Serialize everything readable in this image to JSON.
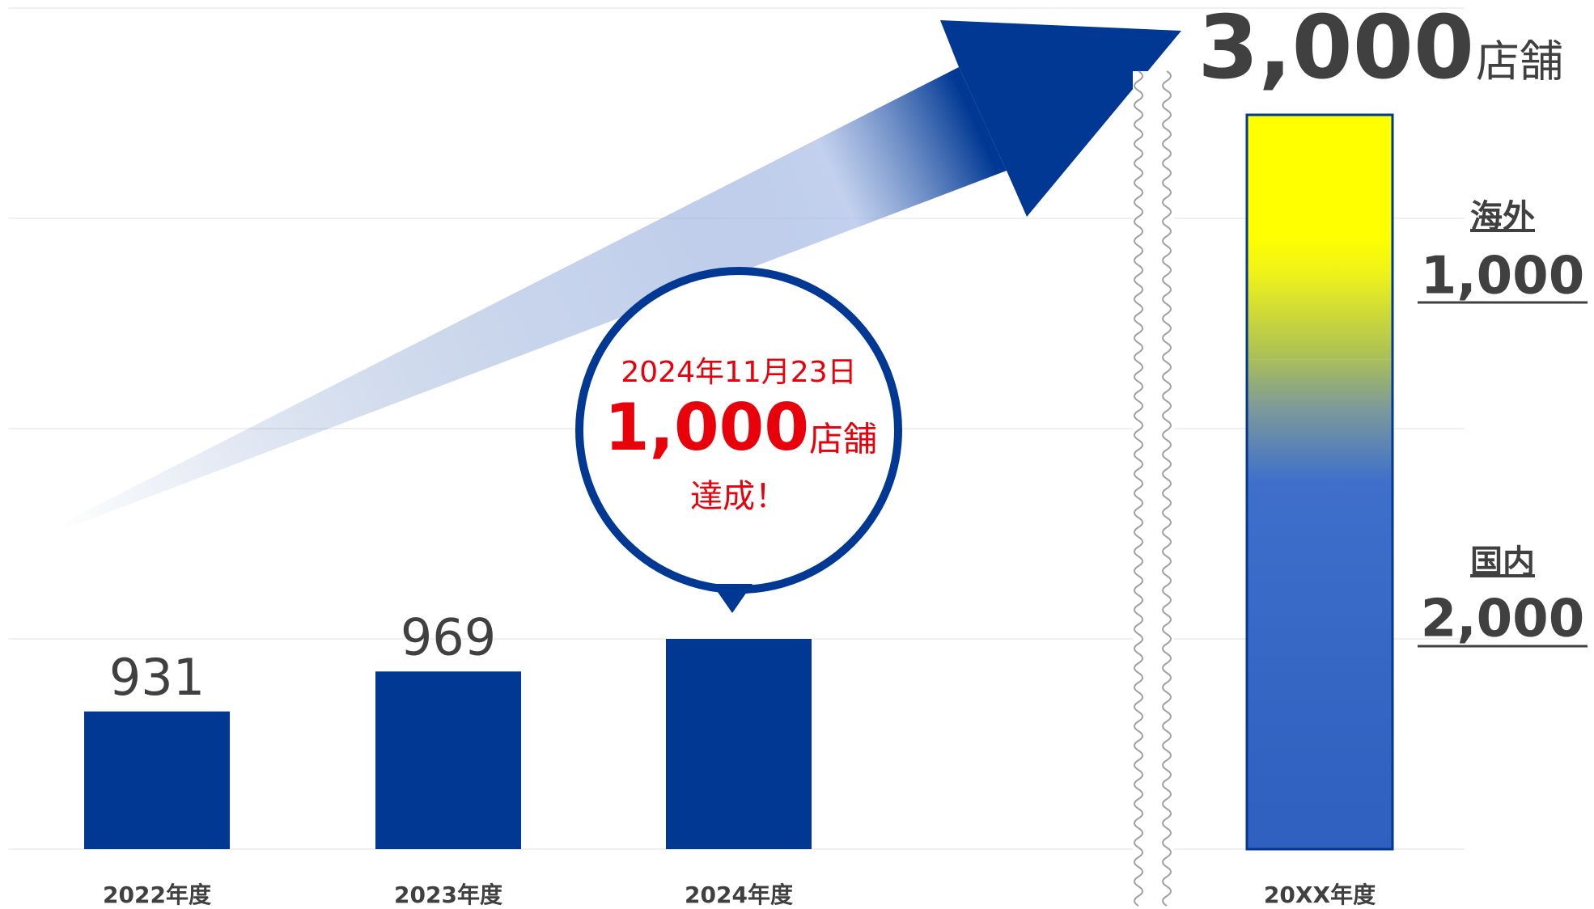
{
  "chart_data": [
    {
      "type": "bar",
      "categories": [
        "2022年度",
        "2023年度",
        "2024年度"
      ],
      "values": [
        931,
        969,
        1000
      ],
      "color": "#003893",
      "ylim": [
        800,
        1600
      ],
      "yticks": [
        800,
        1000,
        1200,
        1400,
        1600
      ],
      "grid": true,
      "annotation": {
        "date": "2024年11月23日",
        "value": "1,000",
        "unit": "店舗",
        "text": "達成！"
      }
    },
    {
      "type": "stacked_bar",
      "categories": [
        "20XX年度"
      ],
      "series": [
        {
          "name": "国内",
          "color": "#3a6bc8",
          "values": [
            2000
          ],
          "value_labels": [
            "2,000"
          ]
        },
        {
          "name": "海外",
          "color": "#ffff00",
          "values": [
            1000
          ],
          "value_labels": [
            "1,000"
          ]
        }
      ],
      "ylim": [
        0,
        3000
      ],
      "total_label": "3,000",
      "unit": "店舗"
    }
  ]
}
